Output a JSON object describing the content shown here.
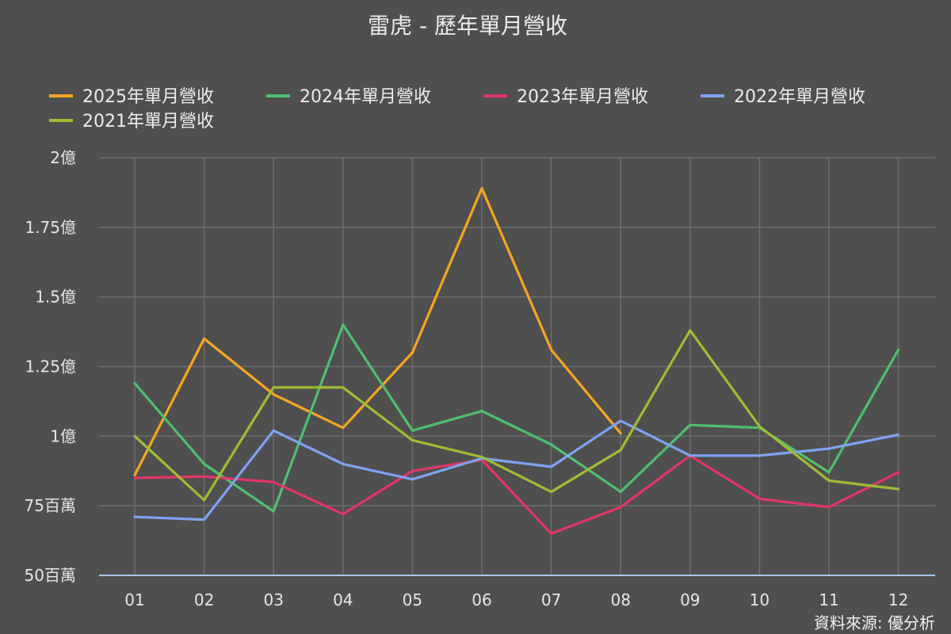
{
  "chart_data": {
    "type": "line",
    "title": "雷虎 - 歷年單月營收",
    "categories": [
      "01",
      "02",
      "03",
      "04",
      "05",
      "06",
      "07",
      "08",
      "09",
      "10",
      "11",
      "12"
    ],
    "y_ticks": [
      {
        "value": 0.5,
        "label": "50百萬"
      },
      {
        "value": 0.75,
        "label": "75百萬"
      },
      {
        "value": 1.0,
        "label": "1億"
      },
      {
        "value": 1.25,
        "label": "1.25億"
      },
      {
        "value": 1.5,
        "label": "1.5億"
      },
      {
        "value": 1.75,
        "label": "1.75億"
      },
      {
        "value": 2.0,
        "label": "2億"
      }
    ],
    "ylim": [
      0.5,
      2.0
    ],
    "y_unit": "億",
    "grid": true,
    "legend_position": "top",
    "series": [
      {
        "name": "2025年單月營收",
        "color": "#f5a623",
        "values": [
          0.86,
          1.35,
          1.15,
          1.03,
          1.3,
          1.89,
          1.31,
          1.01,
          null,
          null,
          null,
          null
        ]
      },
      {
        "name": "2024年單月營收",
        "color": "#4fbf6f",
        "values": [
          1.19,
          0.9,
          0.73,
          1.4,
          1.02,
          1.09,
          0.97,
          0.8,
          1.04,
          1.03,
          0.87,
          1.31
        ]
      },
      {
        "name": "2023年單月營收",
        "color": "#e23668",
        "values": [
          0.85,
          0.855,
          0.835,
          0.72,
          0.875,
          0.915,
          0.65,
          0.745,
          0.93,
          0.775,
          0.745,
          0.87
        ]
      },
      {
        "name": "2022年單月營收",
        "color": "#7ea3f2",
        "values": [
          0.71,
          0.7,
          1.02,
          0.9,
          0.845,
          0.92,
          0.89,
          1.055,
          0.93,
          0.93,
          0.955,
          1.005
        ]
      },
      {
        "name": "2021年單月營收",
        "color": "#9fbc35",
        "values": [
          1.0,
          0.77,
          1.175,
          1.175,
          0.985,
          0.925,
          0.8,
          0.95,
          1.38,
          1.035,
          0.84,
          0.81
        ]
      }
    ],
    "source": "資料來源: 優分析"
  }
}
